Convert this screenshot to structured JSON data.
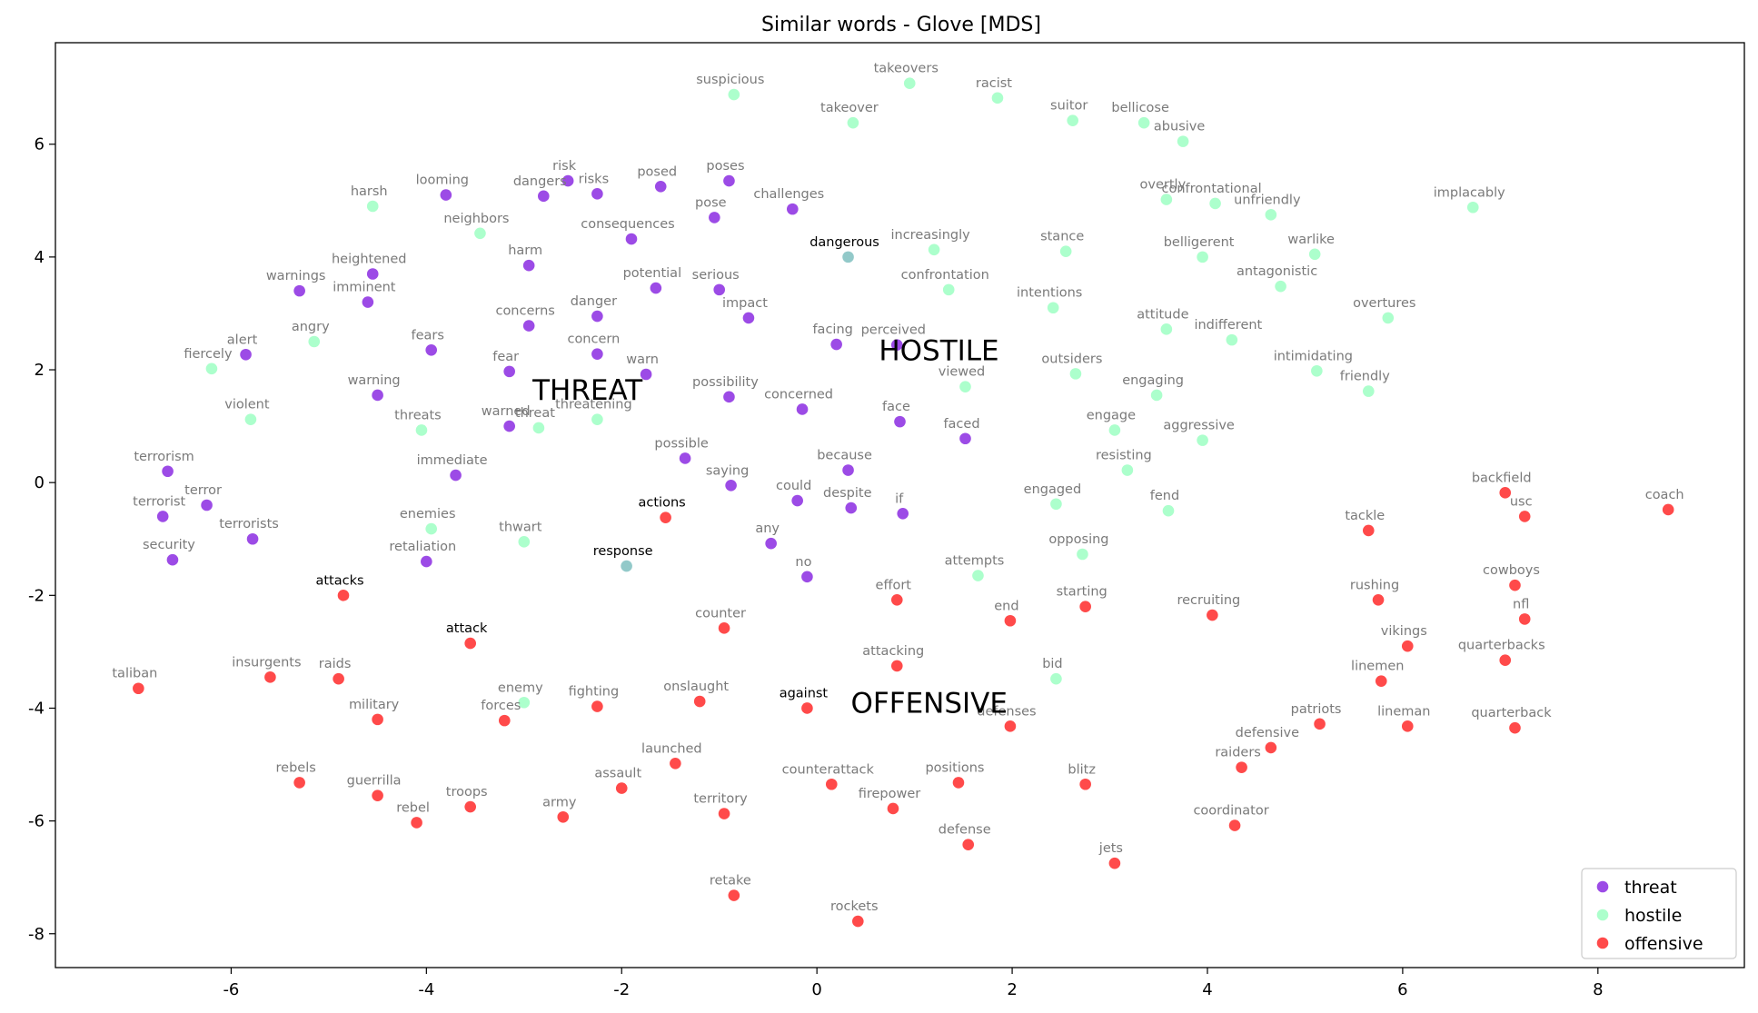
{
  "chart_data": {
    "type": "scatter",
    "title": "Similar words - Glove [MDS]",
    "xlabel": "",
    "ylabel": "",
    "xlim": [
      -7.8,
      9.5
    ],
    "ylim": [
      -8.6,
      7.8
    ],
    "xticks": [
      -6,
      -4,
      -2,
      0,
      2,
      4,
      6,
      8
    ],
    "yticks": [
      -8,
      -6,
      -4,
      -2,
      0,
      2,
      4,
      6
    ],
    "grid": false,
    "legend_position": "bottom-right",
    "series": [
      {
        "name": "threat",
        "color": "#8b2be2",
        "points": [
          {
            "x": -3.8,
            "y": 5.1,
            "label": "looming"
          },
          {
            "x": -2.8,
            "y": 5.08,
            "label": "dangers"
          },
          {
            "x": -2.55,
            "y": 5.35,
            "label": "risk"
          },
          {
            "x": -2.25,
            "y": 5.12,
            "label": "risks"
          },
          {
            "x": -1.6,
            "y": 5.25,
            "label": "posed"
          },
          {
            "x": -0.9,
            "y": 5.35,
            "label": "poses"
          },
          {
            "x": -1.05,
            "y": 4.7,
            "label": "pose"
          },
          {
            "x": -0.25,
            "y": 4.85,
            "label": "challenges"
          },
          {
            "x": -1.9,
            "y": 4.32,
            "label": "consequences"
          },
          {
            "x": -2.95,
            "y": 3.85,
            "label": "harm"
          },
          {
            "x": -4.55,
            "y": 3.7,
            "label": "heightened"
          },
          {
            "x": -5.3,
            "y": 3.4,
            "label": "warnings"
          },
          {
            "x": -4.6,
            "y": 3.2,
            "label": "imminent"
          },
          {
            "x": -1.65,
            "y": 3.45,
            "label": "potential"
          },
          {
            "x": -1.0,
            "y": 3.42,
            "label": "serious"
          },
          {
            "x": -2.25,
            "y": 2.95,
            "label": "danger"
          },
          {
            "x": -0.7,
            "y": 2.92,
            "label": "impact"
          },
          {
            "x": -2.95,
            "y": 2.78,
            "label": "concerns"
          },
          {
            "x": -5.85,
            "y": 2.27,
            "label": "alert"
          },
          {
            "x": -3.95,
            "y": 2.35,
            "label": "fears"
          },
          {
            "x": -2.25,
            "y": 2.28,
            "label": "concern"
          },
          {
            "x": -3.15,
            "y": 1.97,
            "label": "fear"
          },
          {
            "x": -1.75,
            "y": 1.92,
            "label": "warn"
          },
          {
            "x": 0.2,
            "y": 2.45,
            "label": "facing"
          },
          {
            "x": 0.82,
            "y": 2.44,
            "label": "perceived"
          },
          {
            "x": -4.5,
            "y": 1.55,
            "label": "warning"
          },
          {
            "x": -0.9,
            "y": 1.52,
            "label": "possibility"
          },
          {
            "x": -0.15,
            "y": 1.3,
            "label": "concerned"
          },
          {
            "x": -3.15,
            "y": 1.0,
            "label": "warned"
          },
          {
            "x": 0.85,
            "y": 1.08,
            "label": "face"
          },
          {
            "x": 1.52,
            "y": 0.78,
            "label": "faced"
          },
          {
            "x": -1.35,
            "y": 0.43,
            "label": "possible"
          },
          {
            "x": -6.65,
            "y": 0.2,
            "label": "terrorism"
          },
          {
            "x": -3.7,
            "y": 0.13,
            "label": "immediate"
          },
          {
            "x": 0.32,
            "y": 0.22,
            "label": "because"
          },
          {
            "x": -0.88,
            "y": -0.05,
            "label": "saying"
          },
          {
            "x": -6.25,
            "y": -0.4,
            "label": "terror"
          },
          {
            "x": -6.7,
            "y": -0.6,
            "label": "terrorist"
          },
          {
            "x": -0.2,
            "y": -0.32,
            "label": "could"
          },
          {
            "x": 0.35,
            "y": -0.45,
            "label": "despite"
          },
          {
            "x": 0.88,
            "y": -0.55,
            "label": "if"
          },
          {
            "x": -5.78,
            "y": -1.0,
            "label": "terrorists"
          },
          {
            "x": -0.47,
            "y": -1.08,
            "label": "any"
          },
          {
            "x": -6.6,
            "y": -1.37,
            "label": "security"
          },
          {
            "x": -4.0,
            "y": -1.4,
            "label": "retaliation"
          },
          {
            "x": -0.1,
            "y": -1.67,
            "label": "no"
          }
        ]
      },
      {
        "name": "hostile",
        "color": "#9dffc3",
        "points": [
          {
            "x": -0.85,
            "y": 6.88,
            "label": "suspicious"
          },
          {
            "x": 0.95,
            "y": 7.08,
            "label": "takeovers"
          },
          {
            "x": 1.85,
            "y": 6.82,
            "label": "racist"
          },
          {
            "x": 0.37,
            "y": 6.38,
            "label": "takeover"
          },
          {
            "x": 2.62,
            "y": 6.42,
            "label": "suitor"
          },
          {
            "x": 3.35,
            "y": 6.38,
            "label": "bellicose"
          },
          {
            "x": 3.75,
            "y": 6.05,
            "label": "abusive"
          },
          {
            "x": -4.55,
            "y": 4.9,
            "label": "harsh"
          },
          {
            "x": 3.58,
            "y": 5.02,
            "label": "overtly"
          },
          {
            "x": 4.08,
            "y": 4.95,
            "label": "confrontational"
          },
          {
            "x": 4.65,
            "y": 4.75,
            "label": "unfriendly"
          },
          {
            "x": 6.72,
            "y": 4.88,
            "label": "implacably"
          },
          {
            "x": -3.45,
            "y": 4.42,
            "label": "neighbors"
          },
          {
            "x": 1.2,
            "y": 4.13,
            "label": "increasingly"
          },
          {
            "x": 2.55,
            "y": 4.1,
            "label": "stance"
          },
          {
            "x": 3.95,
            "y": 4.0,
            "label": "belligerent"
          },
          {
            "x": 5.1,
            "y": 4.05,
            "label": "warlike"
          },
          {
            "x": 1.35,
            "y": 3.42,
            "label": "confrontation"
          },
          {
            "x": 4.75,
            "y": 3.48,
            "label": "antagonistic"
          },
          {
            "x": 2.42,
            "y": 3.1,
            "label": "intentions"
          },
          {
            "x": 5.85,
            "y": 2.92,
            "label": "overtures"
          },
          {
            "x": -5.15,
            "y": 2.5,
            "label": "angry"
          },
          {
            "x": 3.58,
            "y": 2.72,
            "label": "attitude"
          },
          {
            "x": 4.25,
            "y": 2.53,
            "label": "indifferent"
          },
          {
            "x": -6.2,
            "y": 2.02,
            "label": "fiercely"
          },
          {
            "x": 2.65,
            "y": 1.93,
            "label": "outsiders"
          },
          {
            "x": 5.12,
            "y": 1.98,
            "label": "intimidating"
          },
          {
            "x": 1.52,
            "y": 1.7,
            "label": "viewed"
          },
          {
            "x": 3.48,
            "y": 1.55,
            "label": "engaging"
          },
          {
            "x": 5.65,
            "y": 1.62,
            "label": "friendly"
          },
          {
            "x": -5.8,
            "y": 1.12,
            "label": "violent"
          },
          {
            "x": -2.85,
            "y": 0.97,
            "label": "threat"
          },
          {
            "x": -2.25,
            "y": 1.12,
            "label": "threatening"
          },
          {
            "x": -4.05,
            "y": 0.93,
            "label": "threats"
          },
          {
            "x": 3.05,
            "y": 0.93,
            "label": "engage"
          },
          {
            "x": 3.95,
            "y": 0.75,
            "label": "aggressive"
          },
          {
            "x": 3.18,
            "y": 0.22,
            "label": "resisting"
          },
          {
            "x": 2.45,
            "y": -0.38,
            "label": "engaged"
          },
          {
            "x": 3.6,
            "y": -0.5,
            "label": "fend"
          },
          {
            "x": -3.95,
            "y": -0.82,
            "label": "enemies"
          },
          {
            "x": -3.0,
            "y": -1.05,
            "label": "thwart"
          },
          {
            "x": 2.72,
            "y": -1.27,
            "label": "opposing"
          },
          {
            "x": 1.65,
            "y": -1.65,
            "label": "attempts"
          },
          {
            "x": 2.45,
            "y": -3.48,
            "label": "bid"
          },
          {
            "x": -3.0,
            "y": -3.9,
            "label": "enemy"
          }
        ]
      },
      {
        "name": "offensive",
        "color": "#ff2a2a",
        "points": [
          {
            "x": 7.05,
            "y": -0.18,
            "label": "backfield"
          },
          {
            "x": 8.72,
            "y": -0.48,
            "label": "coach"
          },
          {
            "x": 7.25,
            "y": -0.6,
            "label": "usc"
          },
          {
            "x": 5.65,
            "y": -0.85,
            "label": "tackle"
          },
          {
            "x": -1.55,
            "y": -0.62,
            "label": "actions"
          },
          {
            "x": 7.15,
            "y": -1.82,
            "label": "cowboys"
          },
          {
            "x": 5.75,
            "y": -2.08,
            "label": "rushing"
          },
          {
            "x": 0.82,
            "y": -2.08,
            "label": "effort"
          },
          {
            "x": 2.75,
            "y": -2.2,
            "label": "starting"
          },
          {
            "x": -4.85,
            "y": -2.0,
            "label": "attacks"
          },
          {
            "x": 7.25,
            "y": -2.42,
            "label": "nfl"
          },
          {
            "x": 4.05,
            "y": -2.35,
            "label": "recruiting"
          },
          {
            "x": 1.98,
            "y": -2.45,
            "label": "end"
          },
          {
            "x": -0.95,
            "y": -2.58,
            "label": "counter"
          },
          {
            "x": -3.55,
            "y": -2.85,
            "label": "attack"
          },
          {
            "x": 6.05,
            "y": -2.9,
            "label": "vikings"
          },
          {
            "x": 7.05,
            "y": -3.15,
            "label": "quarterbacks"
          },
          {
            "x": 0.82,
            "y": -3.25,
            "label": "attacking"
          },
          {
            "x": -5.6,
            "y": -3.45,
            "label": "insurgents"
          },
          {
            "x": -4.9,
            "y": -3.48,
            "label": "raids"
          },
          {
            "x": 5.78,
            "y": -3.52,
            "label": "linemen"
          },
          {
            "x": -6.95,
            "y": -3.65,
            "label": "taliban"
          },
          {
            "x": -1.2,
            "y": -3.88,
            "label": "onslaught"
          },
          {
            "x": -2.25,
            "y": -3.97,
            "label": "fighting"
          },
          {
            "x": -0.1,
            "y": -4.0,
            "label": "against"
          },
          {
            "x": -4.5,
            "y": -4.2,
            "label": "military"
          },
          {
            "x": -3.2,
            "y": -4.22,
            "label": "forces"
          },
          {
            "x": 5.15,
            "y": -4.28,
            "label": "patriots"
          },
          {
            "x": 6.05,
            "y": -4.32,
            "label": "lineman"
          },
          {
            "x": 7.15,
            "y": -4.35,
            "label": "quarterback"
          },
          {
            "x": 1.98,
            "y": -4.32,
            "label": "defenses"
          },
          {
            "x": 4.65,
            "y": -4.7,
            "label": "defensive"
          },
          {
            "x": -1.45,
            "y": -4.98,
            "label": "launched"
          },
          {
            "x": 4.35,
            "y": -5.05,
            "label": "raiders"
          },
          {
            "x": -5.3,
            "y": -5.32,
            "label": "rebels"
          },
          {
            "x": 0.15,
            "y": -5.35,
            "label": "counterattack"
          },
          {
            "x": 1.45,
            "y": -5.32,
            "label": "positions"
          },
          {
            "x": 2.75,
            "y": -5.35,
            "label": "blitz"
          },
          {
            "x": -2.0,
            "y": -5.42,
            "label": "assault"
          },
          {
            "x": -4.5,
            "y": -5.55,
            "label": "guerrilla"
          },
          {
            "x": -3.55,
            "y": -5.75,
            "label": "troops"
          },
          {
            "x": 0.78,
            "y": -5.78,
            "label": "firepower"
          },
          {
            "x": -0.95,
            "y": -5.87,
            "label": "territory"
          },
          {
            "x": -2.6,
            "y": -5.93,
            "label": "army"
          },
          {
            "x": -4.1,
            "y": -6.03,
            "label": "rebel"
          },
          {
            "x": 4.28,
            "y": -6.08,
            "label": "coordinator"
          },
          {
            "x": 1.55,
            "y": -6.42,
            "label": "defense"
          },
          {
            "x": 3.05,
            "y": -6.75,
            "label": "jets"
          },
          {
            "x": -0.85,
            "y": -7.32,
            "label": "retake"
          },
          {
            "x": 0.42,
            "y": -7.78,
            "label": "rockets"
          }
        ]
      }
    ],
    "overlap_points": [
      {
        "x": 0.32,
        "y": 4.0,
        "label": "dangerous",
        "color": "#7fbfbf"
      },
      {
        "x": -1.95,
        "y": -1.48,
        "label": "response",
        "color": "#7fbfbf"
      }
    ],
    "dark_labels": [
      "dangerous",
      "actions",
      "response",
      "attacks",
      "attack",
      "against"
    ],
    "annotations": [
      {
        "text": "THREAT",
        "x": -2.35,
        "y": 1.65
      },
      {
        "text": "HOSTILE",
        "x": 1.25,
        "y": 2.35
      },
      {
        "text": "OFFENSIVE",
        "x": 1.15,
        "y": -3.9
      }
    ]
  }
}
